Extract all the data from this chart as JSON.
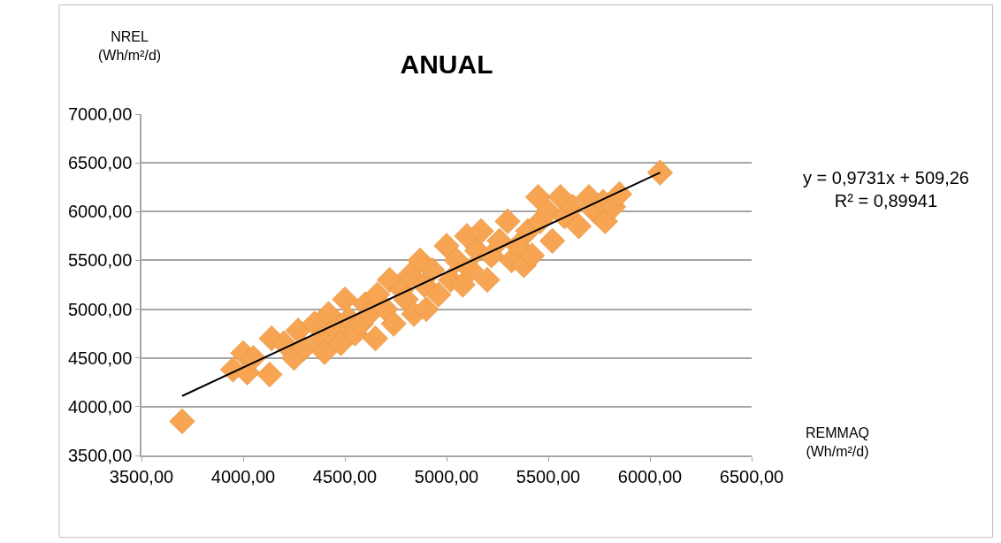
{
  "chart_data": {
    "type": "scatter",
    "title": "ANUAL",
    "xlabel": "REMMAQ\n(Wh/m²/d)",
    "ylabel": "NREL\n(Wh/m²/d)",
    "annotations": [
      "y = 0,9731x + 509,26\nR² = 0,89941"
    ],
    "marker": "diamond",
    "grid": "y",
    "legend": false,
    "xlim": [
      3500,
      6500
    ],
    "ylim": [
      3500,
      7000
    ],
    "xticks": [
      {
        "value": 3500,
        "label": "3500,00"
      },
      {
        "value": 4000,
        "label": "4000,00"
      },
      {
        "value": 4500,
        "label": "4500,00"
      },
      {
        "value": 5000,
        "label": "5000,00"
      },
      {
        "value": 5500,
        "label": "5500,00"
      },
      {
        "value": 6000,
        "label": "6000,00"
      },
      {
        "value": 6500,
        "label": "6500,00"
      }
    ],
    "yticks": [
      {
        "value": 3500,
        "label": "3500,00"
      },
      {
        "value": 4000,
        "label": "4000,00"
      },
      {
        "value": 4500,
        "label": "4500,00"
      },
      {
        "value": 5000,
        "label": "5000,00"
      },
      {
        "value": 5500,
        "label": "5500,00"
      },
      {
        "value": 6000,
        "label": "6000,00"
      },
      {
        "value": 6500,
        "label": "6500,00"
      },
      {
        "value": 7000,
        "label": "7000,00"
      }
    ],
    "series": [
      {
        "color": "#f7a552",
        "x": [
          3700,
          3950,
          4000,
          4020,
          4050,
          4130,
          4140,
          4200,
          4250,
          4270,
          4300,
          4350,
          4380,
          4400,
          4420,
          4450,
          4480,
          4500,
          4520,
          4550,
          4580,
          4600,
          4620,
          4650,
          4660,
          4700,
          4720,
          4740,
          4780,
          4800,
          4820,
          4840,
          4870,
          4890,
          4900,
          4930,
          4960,
          5000,
          5020,
          5050,
          5080,
          5100,
          5120,
          5150,
          5170,
          5200,
          5220,
          5260,
          5300,
          5320,
          5350,
          5380,
          5400,
          5420,
          5450,
          5460,
          5500,
          5520,
          5560,
          5580,
          5620,
          5650,
          5700,
          5730,
          5770,
          5780,
          5820,
          5850,
          6050
        ],
        "values": [
          3850,
          4380,
          4550,
          4350,
          4500,
          4330,
          4700,
          4650,
          4500,
          4780,
          4600,
          4850,
          4700,
          4560,
          4950,
          4800,
          4650,
          5100,
          4900,
          4750,
          4850,
          5050,
          4950,
          4700,
          5150,
          5000,
          5300,
          4850,
          5200,
          5100,
          5350,
          4950,
          5500,
          5250,
          5000,
          5400,
          5150,
          5650,
          5300,
          5500,
          5250,
          5750,
          5400,
          5600,
          5800,
          5300,
          5550,
          5700,
          5900,
          5500,
          5650,
          5450,
          5800,
          5550,
          6150,
          5900,
          6000,
          5700,
          6150,
          5950,
          6050,
          5850,
          6150,
          6000,
          6100,
          5900,
          6050,
          6180,
          6400
        ]
      },
      {
        "type": "line",
        "marker": "none",
        "color": "#000000",
        "x": [
          3700,
          6050
        ],
        "values": [
          4110,
          6400
        ]
      }
    ]
  }
}
